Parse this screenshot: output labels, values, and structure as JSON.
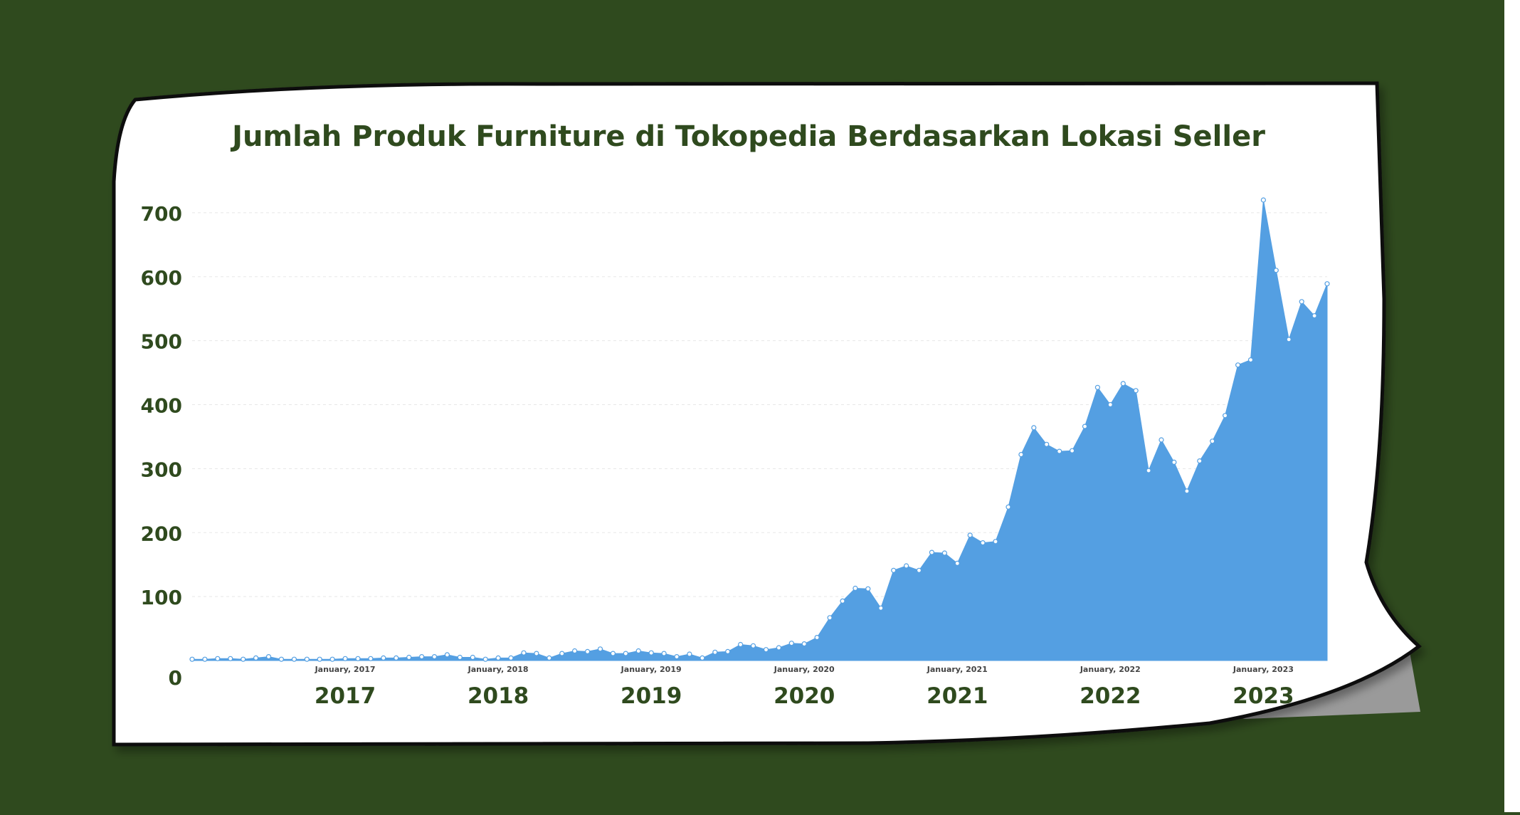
{
  "colors": {
    "background": "#2f4a1e",
    "paper": "#ffffff",
    "title": "#2f4a1e",
    "axis_text": "#2f4a1e",
    "area_fill": "#549fe2",
    "marker": "#ffffff",
    "grid": "#e8e8e8"
  },
  "chart_data": {
    "type": "area",
    "title": "Jumlah Produk Furniture di Tokopedia Berdasarkan Lokasi Seller",
    "xlabel": "",
    "ylabel": "",
    "ylim": [
      0,
      750
    ],
    "yticks": [
      0,
      100,
      200,
      300,
      400,
      500,
      600,
      700
    ],
    "grid": true,
    "legend": "none",
    "year_labels": [
      "2017",
      "2018",
      "2019",
      "2020",
      "2021",
      "2022",
      "2023"
    ],
    "minor_labels": [
      "January, 2017",
      "January, 2018",
      "January, 2019",
      "January, 2020",
      "January, 2021",
      "January, 2022",
      "January, 2023"
    ],
    "x_start": "2016-01",
    "x_end": "2023-07",
    "values": [
      2,
      2,
      3,
      3,
      2,
      4,
      6,
      2,
      2,
      2,
      2,
      2,
      3,
      3,
      3,
      4,
      4,
      5,
      6,
      6,
      9,
      5,
      5,
      2,
      4,
      4,
      12,
      11,
      4,
      11,
      15,
      14,
      18,
      11,
      11,
      15,
      12,
      11,
      6,
      10,
      4,
      13,
      14,
      25,
      23,
      17,
      20,
      27,
      26,
      36,
      67,
      93,
      113,
      112,
      82,
      141,
      148,
      141,
      169,
      168,
      152,
      196,
      184,
      186,
      240,
      322,
      364,
      338,
      327,
      328,
      366,
      427,
      400,
      433,
      422,
      297,
      345,
      310,
      265,
      312,
      343,
      383,
      462,
      470,
      720,
      610,
      502,
      561,
      539,
      589
    ]
  }
}
